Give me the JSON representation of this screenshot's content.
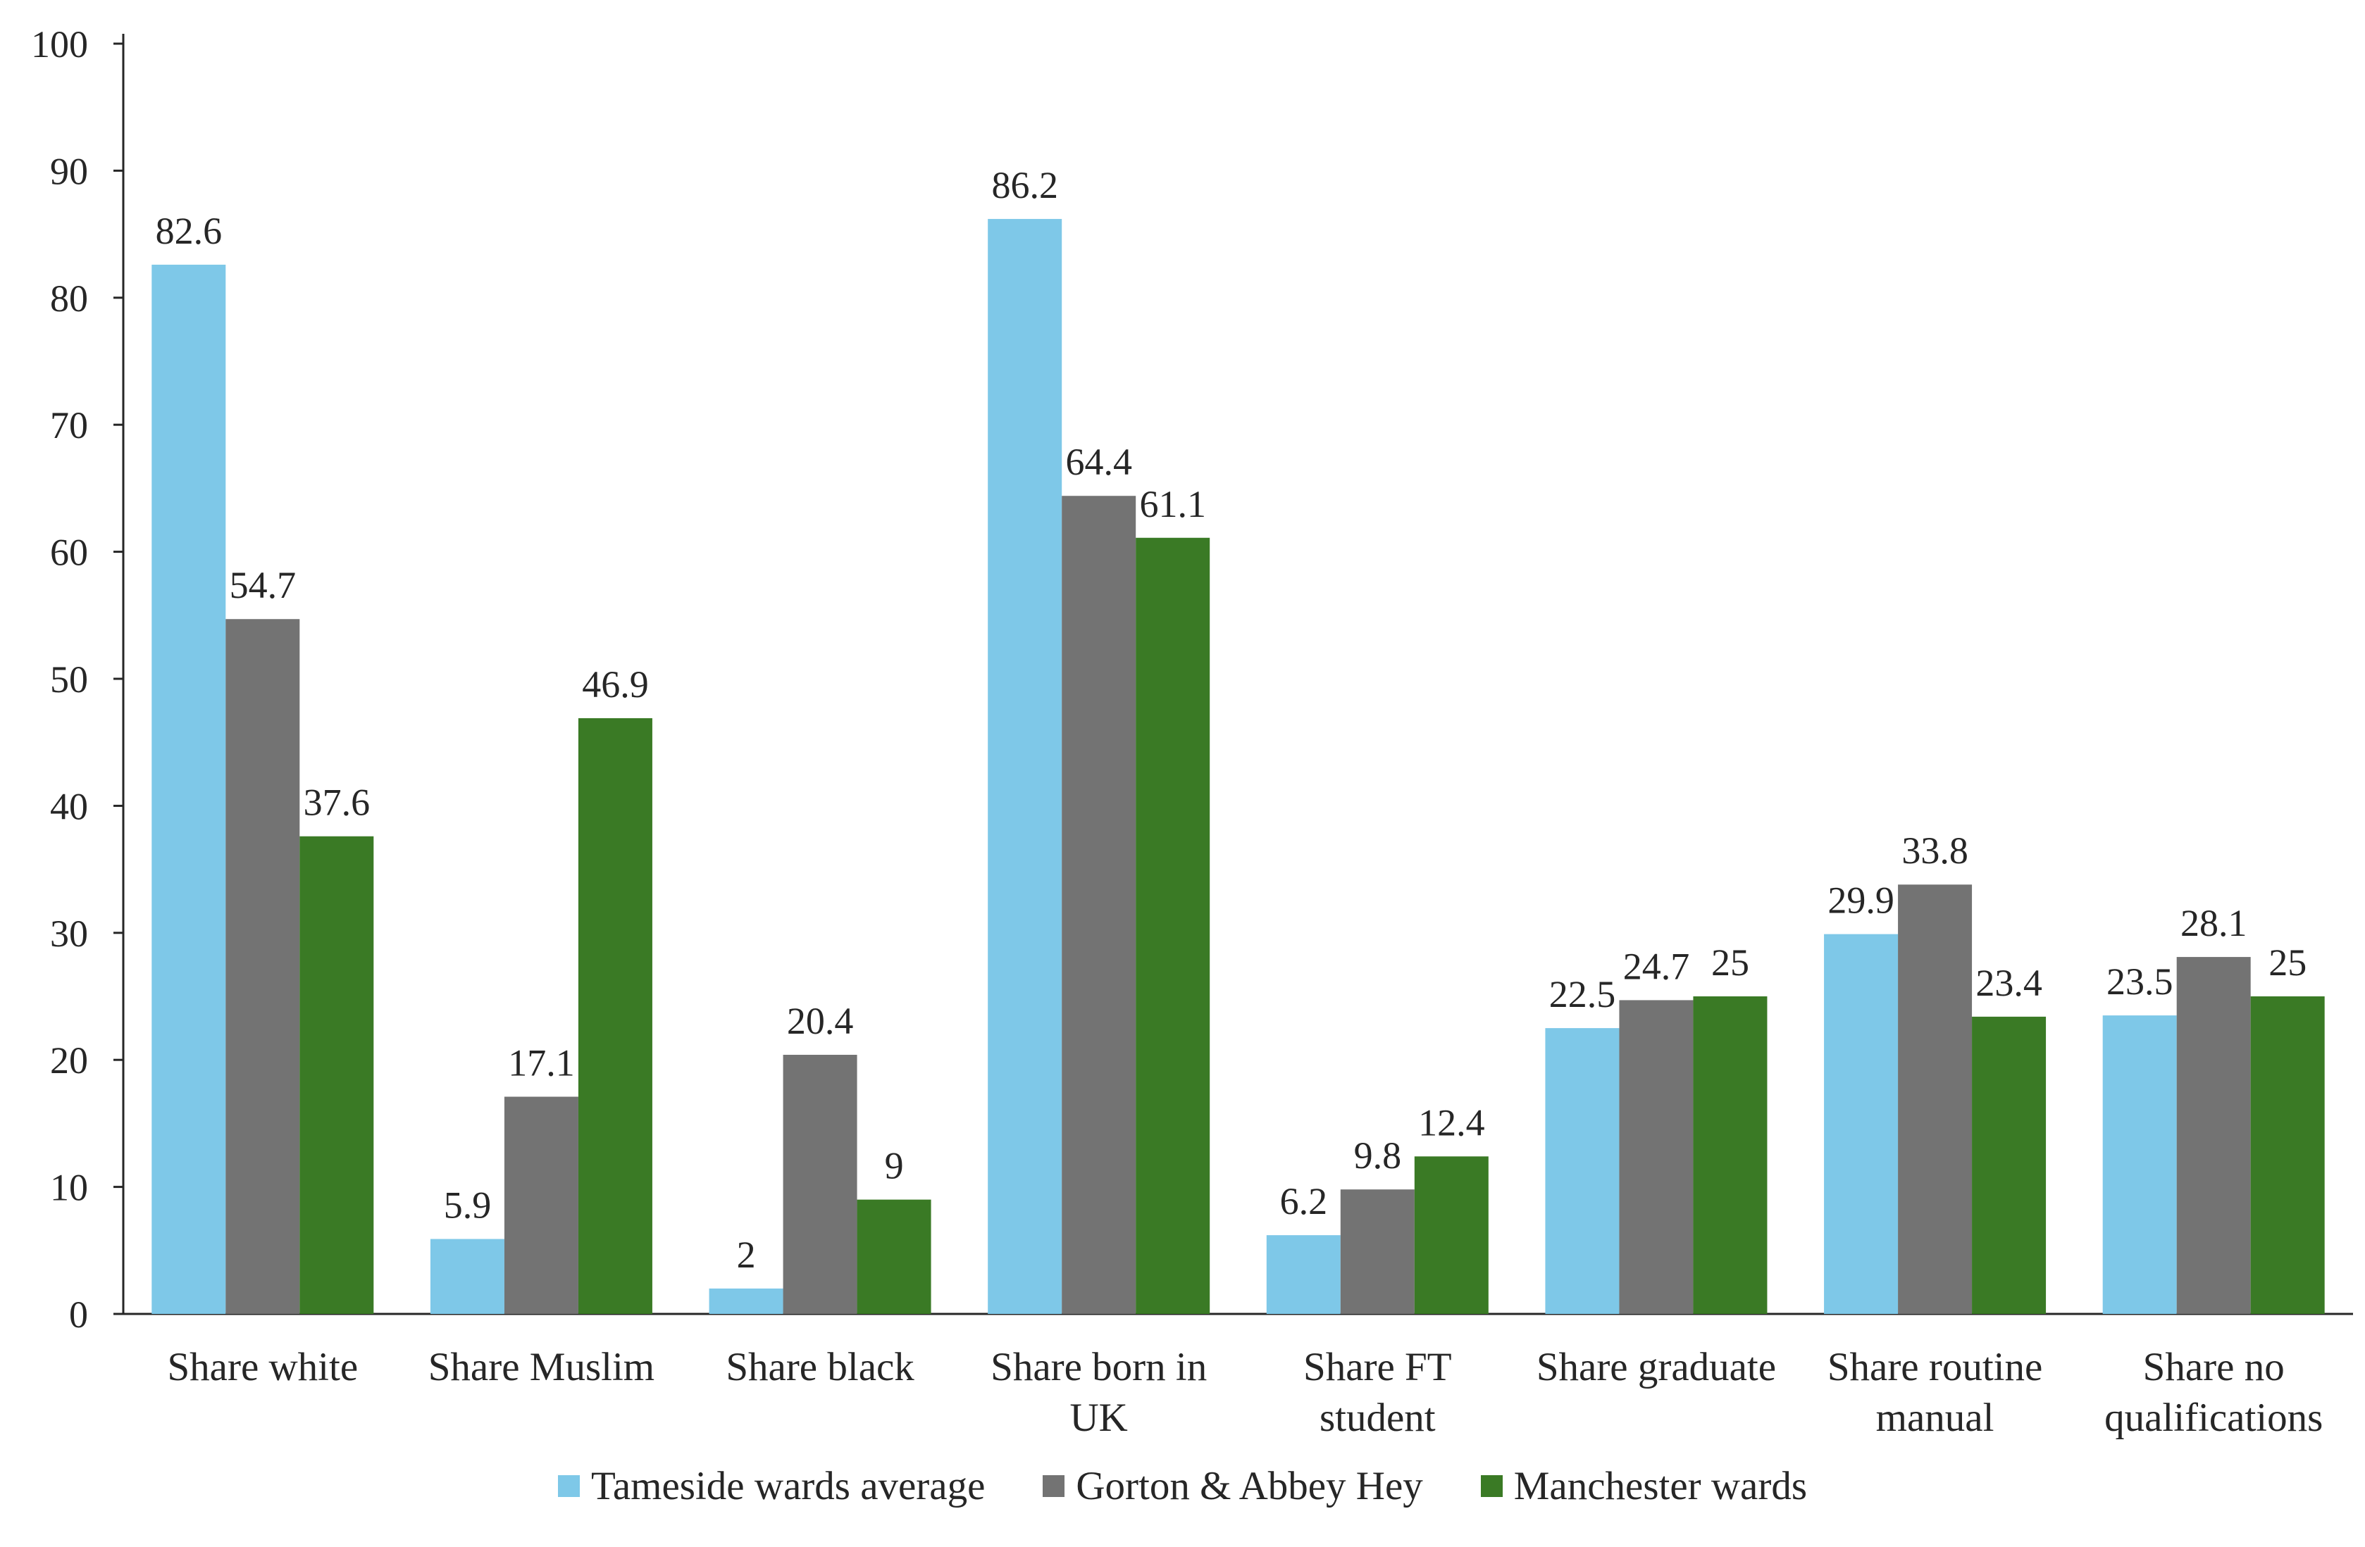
{
  "chart_data": {
    "type": "bar",
    "title": "",
    "xlabel": "",
    "ylabel": "",
    "ylim": [
      0,
      100
    ],
    "yticks": [
      0,
      10,
      20,
      30,
      40,
      50,
      60,
      70,
      80,
      90,
      100
    ],
    "grid": false,
    "legend_position": "bottom",
    "categories": [
      [
        "Share white"
      ],
      [
        "Share Muslim"
      ],
      [
        "Share black"
      ],
      [
        "Share born in",
        "UK"
      ],
      [
        "Share FT",
        "student"
      ],
      [
        "Share graduate"
      ],
      [
        "Share routine",
        "manual"
      ],
      [
        "Share no",
        "qualifications"
      ]
    ],
    "series": [
      {
        "name": "Tameside wards average",
        "color": "#7EC8E8",
        "values": [
          82.6,
          5.9,
          2,
          86.2,
          6.2,
          22.5,
          29.9,
          23.5
        ],
        "labels": [
          "82.6",
          "5.9",
          "2",
          "86.2",
          "6.2",
          "22.5",
          "29.9",
          "23.5"
        ]
      },
      {
        "name": "Gorton & Abbey Hey",
        "color": "#737373",
        "values": [
          54.7,
          17.1,
          20.4,
          64.4,
          9.8,
          24.7,
          33.8,
          28.1
        ],
        "labels": [
          "54.7",
          "17.1",
          "20.4",
          "64.4",
          "9.8",
          "24.7",
          "33.8",
          "28.1"
        ]
      },
      {
        "name": "Manchester wards",
        "color": "#3A7A25",
        "values": [
          37.6,
          46.9,
          9,
          61.1,
          12.4,
          25,
          23.4,
          25
        ],
        "labels": [
          "37.6",
          "46.9",
          "9",
          "61.1",
          "12.4",
          "25",
          "23.4",
          "25"
        ]
      }
    ]
  }
}
